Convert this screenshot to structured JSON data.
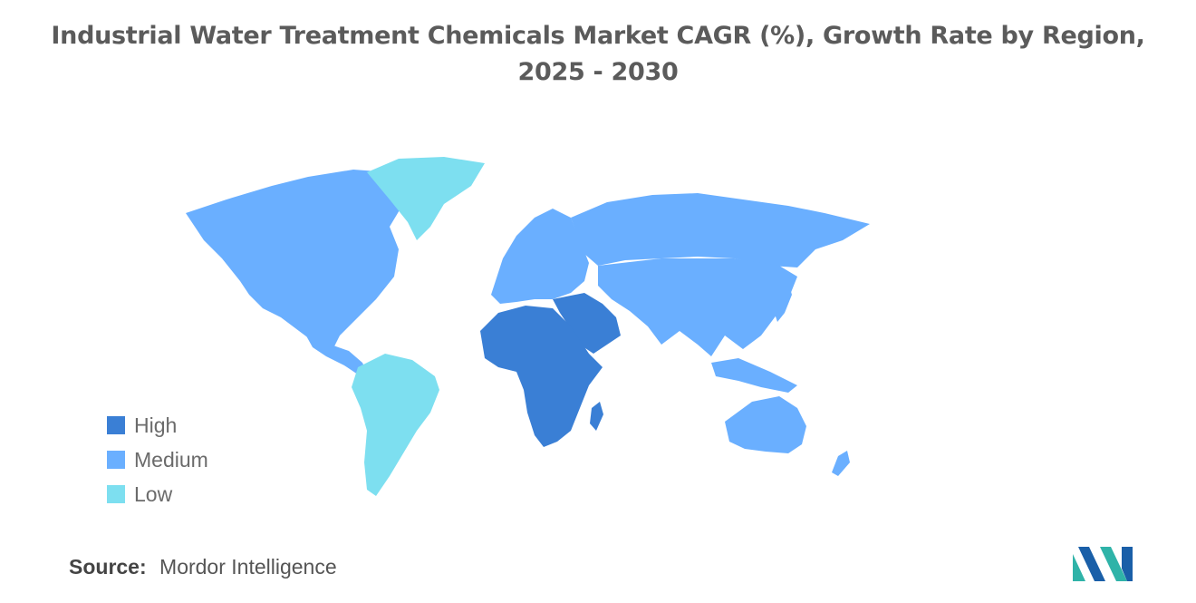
{
  "title": "Industrial Water Treatment Chemicals Market CAGR (%), Growth Rate by Region, 2025 - 2030",
  "legend": [
    {
      "label": "High",
      "color": "#3a7fd5"
    },
    {
      "label": "Medium",
      "color": "#6aafff"
    },
    {
      "label": "Low",
      "color": "#7ddff0"
    }
  ],
  "regions": [
    {
      "name": "North America",
      "level": "Medium"
    },
    {
      "name": "Greenland",
      "level": "Low"
    },
    {
      "name": "South America",
      "level": "Low"
    },
    {
      "name": "Europe",
      "level": "Medium"
    },
    {
      "name": "Russia",
      "level": "Medium"
    },
    {
      "name": "Asia",
      "level": "Medium"
    },
    {
      "name": "Middle East",
      "level": "High"
    },
    {
      "name": "Africa",
      "level": "High"
    },
    {
      "name": "Australia",
      "level": "Medium"
    },
    {
      "name": "New Zealand",
      "level": "Medium"
    }
  ],
  "source": {
    "label": "Source:",
    "value": "Mordor Intelligence"
  },
  "logo_icon": "mordor-intelligence-logo-icon"
}
